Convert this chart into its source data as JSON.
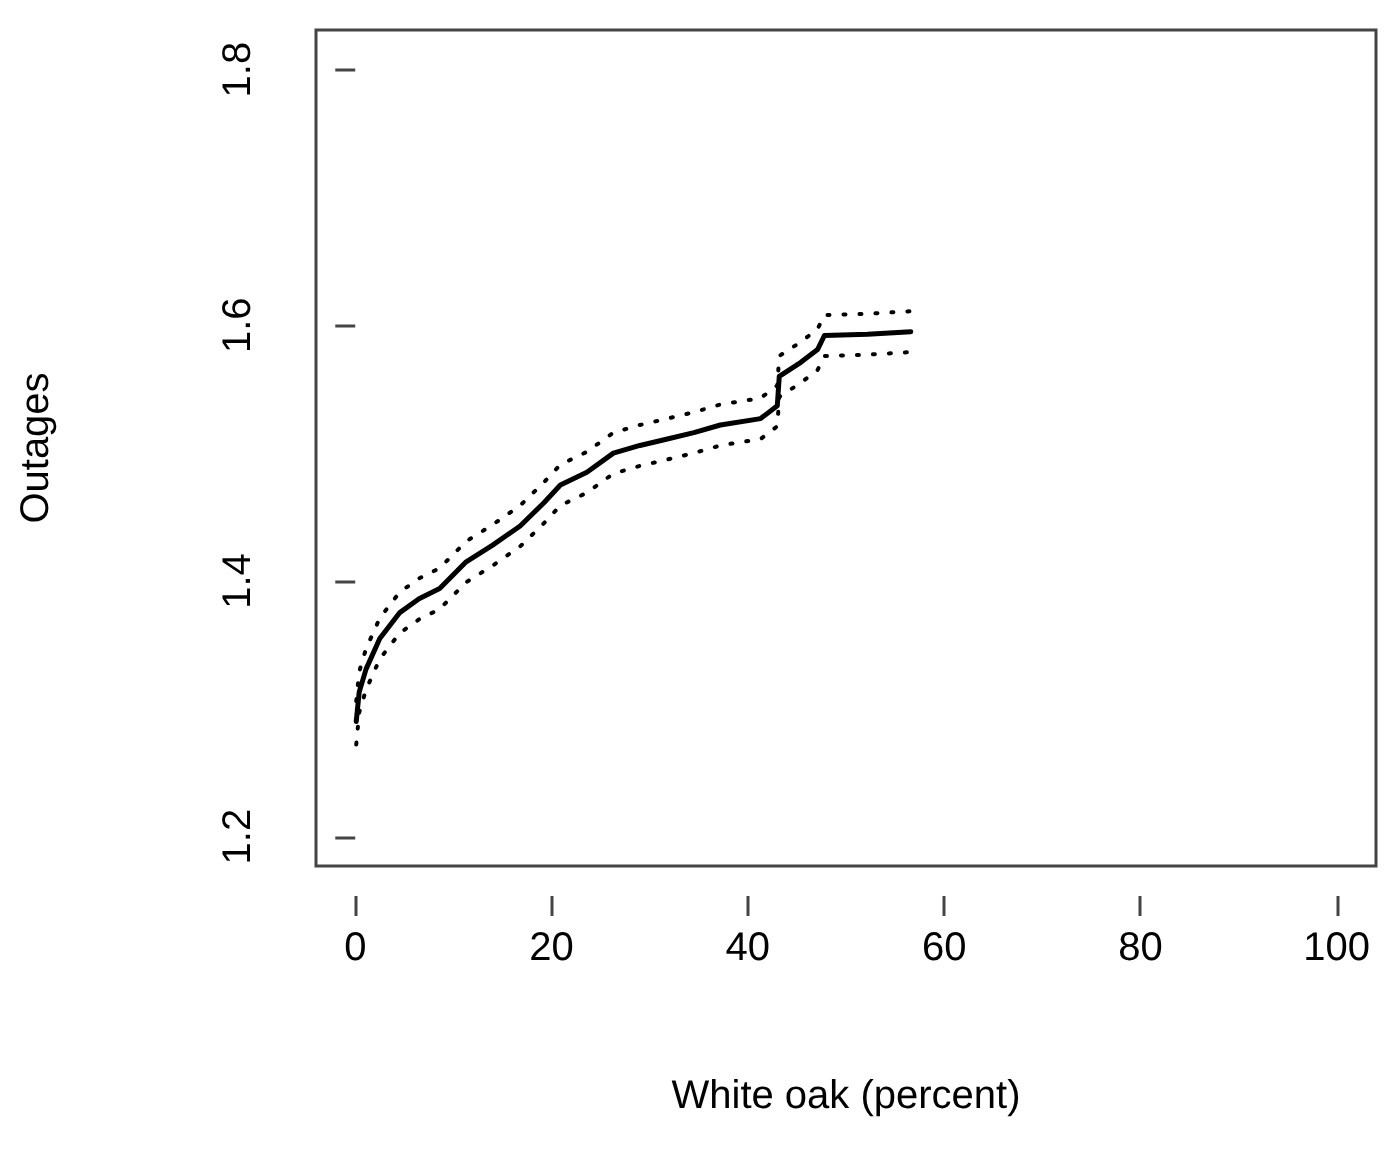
{
  "chart_data": {
    "type": "line",
    "xlabel": "White oak (percent)",
    "ylabel": "Outages",
    "x": [
      0.1,
      0.4,
      1.1,
      2.5,
      4.5,
      6.5,
      8.6,
      11.3,
      14,
      16.8,
      19.2,
      20.9,
      23.6,
      26.3,
      29,
      31.8,
      34.5,
      37.2,
      41.3,
      43,
      43.2,
      45.4,
      47.1,
      47.8,
      52.2,
      56.6
    ],
    "series": [
      {
        "color": "#000000",
        "values": [
          1.29,
          1.313,
          1.331,
          1.355,
          1.375,
          1.386,
          1.394,
          1.415,
          1.428,
          1.443,
          1.461,
          1.475,
          1.485,
          1.5,
          1.506,
          1.511,
          1.516,
          1.522,
          1.527,
          1.537,
          1.56,
          1.571,
          1.581,
          1.592,
          1.593,
          1.595
        ]
      },
      {
        "color": "#000000",
        "line_style": "dotted",
        "values": [
          1.272,
          1.297,
          1.315,
          1.339,
          1.359,
          1.37,
          1.378,
          1.399,
          1.412,
          1.427,
          1.445,
          1.459,
          1.469,
          1.484,
          1.49,
          1.495,
          1.5,
          1.506,
          1.511,
          1.521,
          1.544,
          1.555,
          1.565,
          1.576,
          1.577,
          1.579
        ]
      },
      {
        "color": "#000000",
        "line_style": "dotted",
        "values": [
          1.306,
          1.329,
          1.347,
          1.371,
          1.391,
          1.402,
          1.41,
          1.431,
          1.444,
          1.459,
          1.477,
          1.491,
          1.501,
          1.516,
          1.522,
          1.527,
          1.532,
          1.538,
          1.543,
          1.553,
          1.576,
          1.587,
          1.597,
          1.608,
          1.609,
          1.611
        ]
      }
    ],
    "xlim": [
      -4,
      104
    ],
    "xticks": [
      0,
      20,
      40,
      60,
      80,
      100
    ],
    "ylim": [
      1.177,
      1.831
    ],
    "yticks": [
      1.2,
      1.4,
      1.6,
      1.8
    ],
    "grid": false,
    "marker": "none",
    "line_style": "solid"
  }
}
